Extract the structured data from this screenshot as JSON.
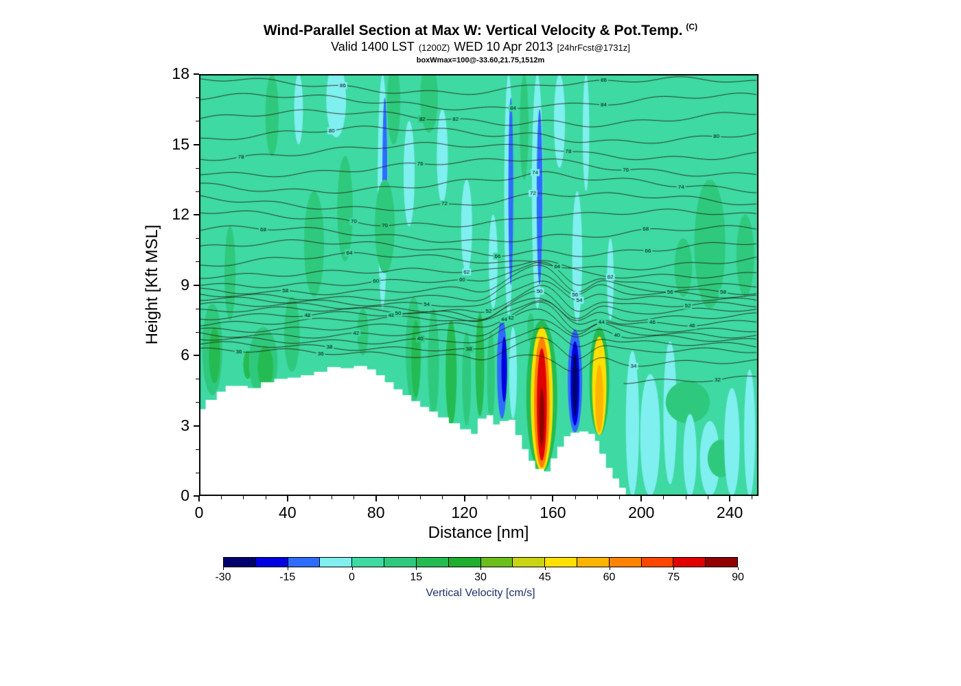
{
  "chart_data": {
    "type": "heatmap",
    "title": "Wind-Parallel Section at Max W: Vertical Velocity & Pot.Temp.",
    "title_units": "(C)",
    "subtitle": {
      "valid": "Valid 1400 LST",
      "zulu": "(1200Z)",
      "date": "WED 10 Apr 2013",
      "fcst": "[24hrFcst@1731z]"
    },
    "annotation": "boxWmax=100@-33.60,21.75,1512m",
    "xlabel": "Distance [nm]",
    "ylabel": "Height [Kft MSL]",
    "xlim": [
      0,
      253
    ],
    "ylim": [
      0,
      18
    ],
    "x_ticks": [
      0,
      40,
      80,
      120,
      160,
      200,
      240
    ],
    "x_minor_step": 10,
    "y_ticks": [
      0,
      3,
      6,
      9,
      12,
      15,
      18
    ],
    "y_minor_step": 1,
    "grid": false,
    "colorbar": {
      "label": "Vertical Velocity [cm/s]",
      "range": [
        -30,
        90
      ],
      "ticks": [
        -30,
        -15,
        0,
        15,
        30,
        45,
        60,
        75,
        90
      ],
      "band_width": 7.5,
      "colors": [
        "#00006E",
        "#0000E0",
        "#2E6BFF",
        "#7FEFEF",
        "#3FD9A3",
        "#2FC97E",
        "#24BC52",
        "#1FAE2E",
        "#6CBE1C",
        "#C8D414",
        "#FFE000",
        "#FFB400",
        "#FF8200",
        "#FF4600",
        "#E00000",
        "#900000"
      ]
    },
    "background_band": 4,
    "features_key": [
      "center_x_nm",
      "width_nm",
      "base_kft",
      "top_kft",
      "colorbar_band_index"
    ],
    "features": [
      [
        6,
        9,
        4.3,
        8.2,
        5
      ],
      [
        7,
        5,
        4.8,
        7.2,
        6
      ],
      [
        14,
        5,
        7.5,
        11.5,
        5
      ],
      [
        22,
        4,
        5.0,
        6.2,
        6
      ],
      [
        29,
        13,
        4.2,
        7.2,
        5
      ],
      [
        30,
        7,
        4.6,
        6.4,
        6
      ],
      [
        33,
        6,
        14.5,
        18,
        5
      ],
      [
        42,
        7,
        5.3,
        8.5,
        5
      ],
      [
        45,
        4,
        15,
        18,
        3
      ],
      [
        52,
        9,
        8.5,
        13,
        5
      ],
      [
        62,
        9,
        15.3,
        18.5,
        3
      ],
      [
        66,
        7,
        10,
        14.5,
        5
      ],
      [
        74,
        5,
        6,
        8,
        5
      ],
      [
        83,
        4.5,
        8,
        18,
        3
      ],
      [
        84,
        2.2,
        10,
        17,
        2
      ],
      [
        88,
        6,
        15,
        18.5,
        5
      ],
      [
        84,
        9,
        9.5,
        13.5,
        5
      ],
      [
        95,
        5,
        11.5,
        16,
        3
      ],
      [
        97,
        7,
        3.9,
        8.5,
        5
      ],
      [
        98,
        4,
        4.2,
        7.5,
        6
      ],
      [
        104,
        8,
        15.5,
        18.5,
        5
      ],
      [
        106,
        5,
        3.4,
        8,
        5
      ],
      [
        110,
        5,
        12.5,
        16.5,
        3
      ],
      [
        114,
        5,
        3.0,
        7.5,
        6
      ],
      [
        121,
        4,
        3.0,
        7.0,
        5
      ],
      [
        121,
        5,
        9.5,
        13.5,
        3
      ],
      [
        127,
        4,
        3.4,
        7.8,
        6
      ],
      [
        132,
        3.5,
        3.2,
        7.0,
        5
      ],
      [
        133,
        4,
        8,
        12,
        3
      ],
      [
        137,
        4.5,
        3.3,
        7.6,
        2
      ],
      [
        138,
        2.5,
        4.0,
        6.8,
        1
      ],
      [
        142,
        3.5,
        3.3,
        7.2,
        3
      ],
      [
        140,
        4,
        7.6,
        18,
        3
      ],
      [
        141,
        2.2,
        9,
        17,
        2
      ],
      [
        147,
        4,
        13.5,
        18,
        5
      ],
      [
        150,
        3,
        6.5,
        7.8,
        5
      ],
      [
        153,
        5,
        8,
        18,
        3
      ],
      [
        154,
        2.6,
        9,
        16.5,
        2
      ],
      [
        155,
        14,
        1.0,
        7.5,
        6
      ],
      [
        155,
        10,
        1.05,
        7.2,
        10
      ],
      [
        155,
        7,
        1.2,
        6.8,
        12
      ],
      [
        155,
        4.5,
        1.5,
        6.3,
        14
      ],
      [
        155,
        2.2,
        2.1,
        4.6,
        15
      ],
      [
        163,
        5,
        14,
        18,
        3
      ],
      [
        170,
        6.5,
        2.7,
        7.1,
        2
      ],
      [
        170,
        4,
        3.0,
        6.6,
        1
      ],
      [
        170,
        2.2,
        3.4,
        6.1,
        0
      ],
      [
        171,
        4.5,
        7.4,
        13,
        3
      ],
      [
        175,
        3,
        13,
        18,
        3
      ],
      [
        181,
        9,
        2.6,
        7.2,
        6
      ],
      [
        181,
        6.5,
        2.6,
        6.8,
        10
      ],
      [
        181,
        3.6,
        2.7,
        5.6,
        11
      ],
      [
        186,
        3,
        7.5,
        11,
        3
      ],
      [
        196,
        6,
        0,
        6.2,
        3
      ],
      [
        204,
        9,
        0,
        5.2,
        3
      ],
      [
        213,
        6,
        0.5,
        6.6,
        3
      ],
      [
        219,
        8,
        8.5,
        11,
        5
      ],
      [
        221,
        20,
        3.1,
        4.9,
        5
      ],
      [
        222,
        6,
        0,
        3.5,
        3
      ],
      [
        231,
        9,
        0,
        3.2,
        3
      ],
      [
        231,
        14,
        8,
        13.5,
        5
      ],
      [
        236,
        12,
        0.8,
        2.4,
        5
      ],
      [
        241,
        7,
        0,
        4.6,
        3
      ],
      [
        247,
        8,
        8.5,
        12,
        5
      ],
      [
        249,
        5,
        0,
        5.4,
        3
      ]
    ],
    "terrain_profile_key": [
      "x_nm",
      "height_kft"
    ],
    "terrain_profile": [
      [
        0,
        3.7
      ],
      [
        3,
        4.1
      ],
      [
        8,
        4.45
      ],
      [
        12,
        4.7
      ],
      [
        22,
        4.6
      ],
      [
        28,
        4.85
      ],
      [
        34,
        5.0
      ],
      [
        40,
        5.05
      ],
      [
        46,
        5.15
      ],
      [
        52,
        5.3
      ],
      [
        58,
        5.5
      ],
      [
        64,
        5.45
      ],
      [
        70,
        5.55
      ],
      [
        76,
        5.4
      ],
      [
        80,
        5.15
      ],
      [
        84,
        4.85
      ],
      [
        88,
        4.55
      ],
      [
        92,
        4.3
      ],
      [
        96,
        4.05
      ],
      [
        100,
        3.8
      ],
      [
        104,
        3.6
      ],
      [
        108,
        3.35
      ],
      [
        113,
        3.1
      ],
      [
        118,
        2.85
      ],
      [
        123,
        2.65
      ],
      [
        126,
        3.3
      ],
      [
        130,
        3.45
      ],
      [
        133,
        3.05
      ],
      [
        136,
        3.2
      ],
      [
        140,
        3.25
      ],
      [
        143,
        2.6
      ],
      [
        146,
        2.0
      ],
      [
        149,
        1.5
      ],
      [
        152,
        1.15
      ],
      [
        156,
        1.05
      ],
      [
        159,
        1.6
      ],
      [
        162,
        2.1
      ],
      [
        165,
        2.55
      ],
      [
        168,
        2.7
      ],
      [
        172,
        2.75
      ],
      [
        176,
        2.65
      ],
      [
        179,
        2.35
      ],
      [
        181,
        1.8
      ],
      [
        184,
        1.2
      ],
      [
        187,
        0.75
      ],
      [
        190,
        0.35
      ],
      [
        193,
        0
      ]
    ],
    "isentropes": {
      "color": "#201200",
      "values": [
        36,
        38,
        40,
        42,
        44,
        46,
        48,
        50,
        52,
        54,
        56,
        58,
        60,
        62,
        64,
        66,
        68,
        70,
        72,
        74,
        76,
        78,
        80,
        82,
        84,
        86
      ],
      "heights": [
        6.1,
        6.4,
        6.7,
        6.95,
        7.2,
        7.45,
        7.65,
        7.85,
        8.05,
        8.3,
        8.55,
        8.8,
        9.1,
        9.5,
        10.0,
        10.55,
        11.15,
        11.85,
        12.55,
        13.3,
        14.0,
        14.7,
        15.4,
        16.1,
        16.8,
        17.5
      ],
      "extra_lines": [
        {
          "value": 34,
          "height": 5.62,
          "x0": 140,
          "x1": 253
        },
        {
          "value": 32,
          "height": 4.95,
          "x0": 192,
          "x1": 253
        }
      ]
    }
  }
}
